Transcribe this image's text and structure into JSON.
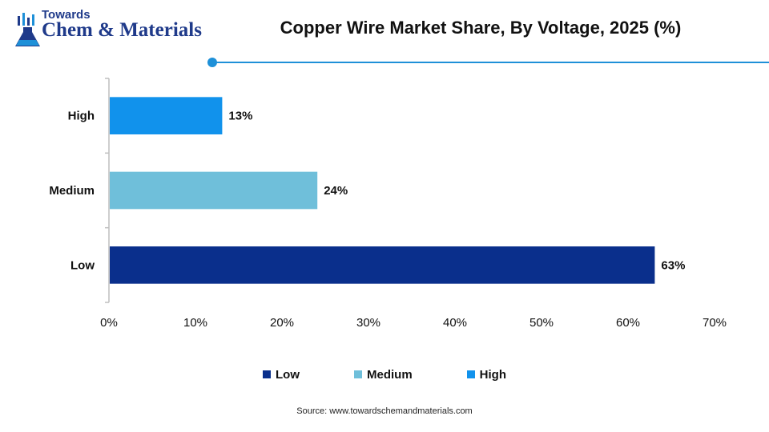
{
  "logo": {
    "top_text": "Towards",
    "main_text": "Chem & Materials"
  },
  "source": "Source:  www.towardschemandmaterials.com",
  "colors": {
    "accent": "#1e90d8",
    "low": "#0a2f8c",
    "medium": "#6fbfda",
    "high": "#1192ec"
  },
  "chart_data": {
    "type": "bar",
    "orientation": "horizontal",
    "title": "Copper Wire Market Share, By Voltage, 2025 (%)",
    "categories": [
      "High",
      "Medium",
      "Low"
    ],
    "values": [
      13,
      24,
      63
    ],
    "data_labels": [
      "13%",
      "24%",
      "63%"
    ],
    "bar_colors": [
      "#1192ec",
      "#6fbfda",
      "#0a2f8c"
    ],
    "xlim": [
      0,
      70
    ],
    "xticks": [
      0,
      10,
      20,
      30,
      40,
      50,
      60,
      70
    ],
    "xtick_labels": [
      "0%",
      "10%",
      "20%",
      "30%",
      "40%",
      "50%",
      "60%",
      "70%"
    ],
    "grid": false,
    "legend_position": "bottom",
    "legend": [
      {
        "name": "Low",
        "color": "#0a2f8c"
      },
      {
        "name": "Medium",
        "color": "#6fbfda"
      },
      {
        "name": "High",
        "color": "#1192ec"
      }
    ]
  }
}
